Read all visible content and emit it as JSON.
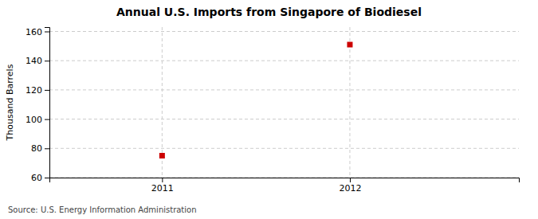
{
  "chart_data": {
    "type": "scatter",
    "title": "Annual U.S. Imports from Singapore of Biodiesel",
    "ylabel": "Thousand Barrels",
    "source": "Source: U.S. Energy Information Administration",
    "x": [
      2011,
      2012
    ],
    "values": [
      75,
      151
    ],
    "color": "#cc0000",
    "marker": "square",
    "xlim": [
      2010.4,
      2012.9
    ],
    "ylim": [
      60,
      163
    ],
    "xticks": [
      2011,
      2012
    ],
    "yticks": [
      60,
      80,
      100,
      120,
      140,
      160
    ],
    "grid": true
  }
}
